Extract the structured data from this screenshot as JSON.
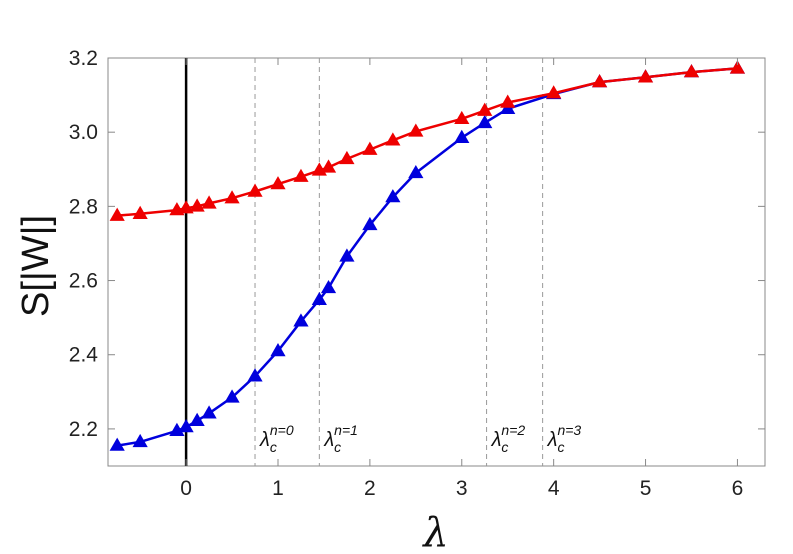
{
  "chart_data": {
    "type": "line",
    "xlabel": "λ",
    "ylabel": "S[|W|]",
    "xlim": [
      -0.85,
      6.3
    ],
    "ylim": [
      2.1,
      3.2
    ],
    "x_ticks": [
      "0",
      "1",
      "2",
      "3",
      "4",
      "5",
      "6"
    ],
    "y_ticks": [
      "2.2",
      "2.4",
      "2.6",
      "2.8",
      "3.0",
      "3.2"
    ],
    "grid": false,
    "marker": "triangle",
    "vertical_line_x": 0,
    "critical_lines": [
      {
        "x": 0.75,
        "label": "λ",
        "sub": "c",
        "sup": "n=0"
      },
      {
        "x": 1.45,
        "label": "λ",
        "sub": "c",
        "sup": "n=1"
      },
      {
        "x": 3.27,
        "label": "λ",
        "sub": "c",
        "sup": "n=2"
      },
      {
        "x": 3.88,
        "label": "λ",
        "sub": "c",
        "sup": "n=3"
      }
    ],
    "series": [
      {
        "color": "#0000dd",
        "x": [
          -0.75,
          -0.5,
          -0.1,
          0.0,
          0.12,
          0.25,
          0.5,
          0.75,
          1.0,
          1.25,
          1.45,
          1.55,
          1.75,
          2.0,
          2.25,
          2.5,
          3.0,
          3.25,
          3.5,
          4.0,
          4.5,
          5.0,
          5.5,
          6.0
        ],
        "y": [
          2.155,
          2.165,
          2.195,
          2.205,
          2.222,
          2.242,
          2.285,
          2.342,
          2.41,
          2.49,
          2.548,
          2.58,
          2.665,
          2.75,
          2.825,
          2.89,
          2.985,
          3.025,
          3.063,
          3.103,
          3.135,
          3.148,
          3.162,
          3.172
        ]
      },
      {
        "color": "#ee0000",
        "x": [
          -0.75,
          -0.5,
          -0.1,
          0.0,
          0.12,
          0.25,
          0.5,
          0.75,
          1.0,
          1.25,
          1.45,
          1.55,
          1.75,
          2.0,
          2.25,
          2.5,
          3.0,
          3.25,
          3.5,
          4.0,
          4.5,
          5.0,
          5.5,
          6.0
        ],
        "y": [
          2.775,
          2.78,
          2.79,
          2.795,
          2.8,
          2.808,
          2.822,
          2.84,
          2.86,
          2.88,
          2.897,
          2.905,
          2.928,
          2.953,
          2.978,
          3.002,
          3.036,
          3.058,
          3.08,
          3.105,
          3.135,
          3.148,
          3.162,
          3.172
        ]
      }
    ]
  }
}
